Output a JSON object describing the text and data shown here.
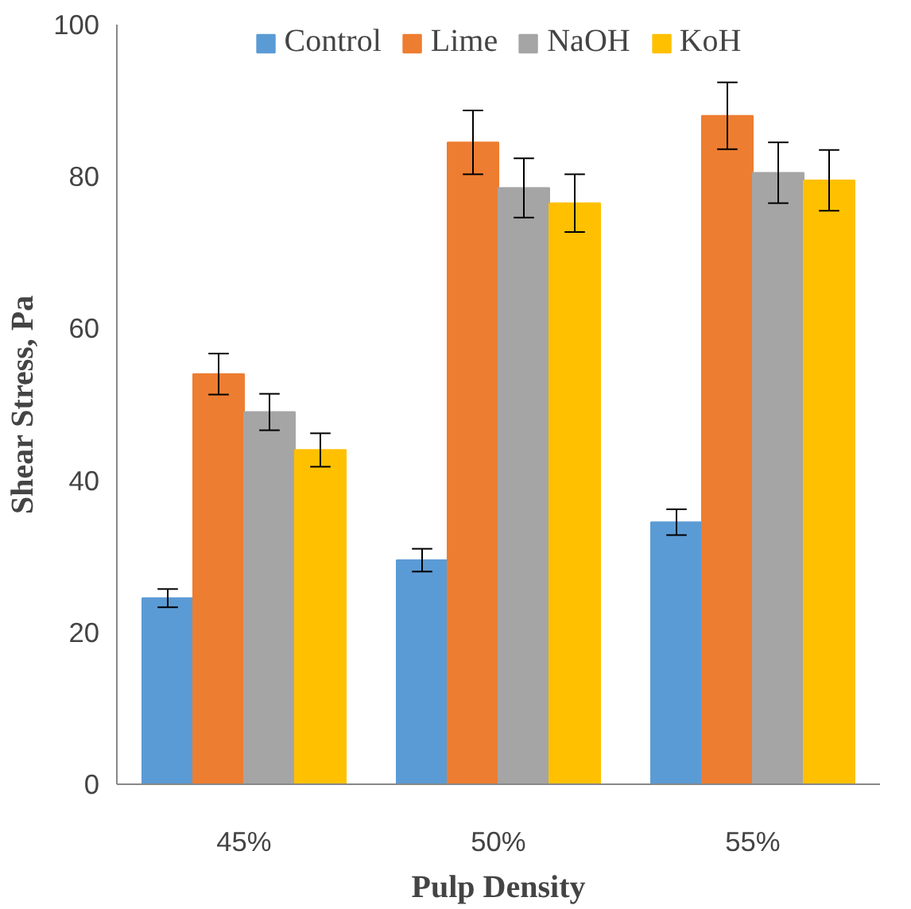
{
  "chart_data": {
    "type": "bar",
    "xlabel": "Pulp Density",
    "ylabel": "Shear Stress, Pa",
    "categories": [
      "45%",
      "50%",
      "55%"
    ],
    "series": [
      {
        "name": "Control",
        "color": "#5b9bd5",
        "values": [
          24.5,
          29.5,
          34.5
        ],
        "errors": [
          1.2,
          1.5,
          1.7
        ]
      },
      {
        "name": "Lime",
        "color": "#ed7d31",
        "values": [
          54,
          84.5,
          88
        ],
        "errors": [
          2.7,
          4.2,
          4.4
        ]
      },
      {
        "name": "NaOH",
        "color": "#a5a5a5",
        "values": [
          49,
          78.5,
          80.5
        ],
        "errors": [
          2.4,
          3.9,
          4
        ]
      },
      {
        "name": "KoH",
        "color": "#ffc000",
        "values": [
          44,
          76.5,
          79.5
        ],
        "errors": [
          2.2,
          3.8,
          4
        ]
      }
    ],
    "ylim": [
      0,
      100
    ],
    "yticks": [
      0,
      20,
      40,
      60,
      80,
      100
    ],
    "grid": false,
    "legend": "top"
  }
}
